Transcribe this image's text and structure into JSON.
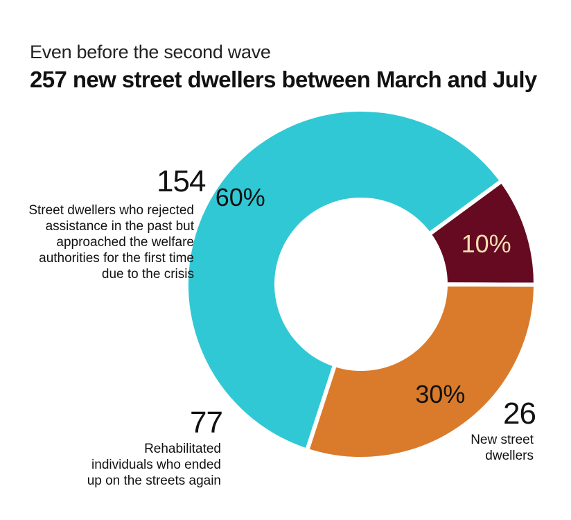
{
  "subtitle": "Even before the second wave",
  "title": "257 new street dwellers between March and July",
  "colors": {
    "cyan": "#30c8d4",
    "orange": "#da7b2b",
    "maroon": "#660a22",
    "pct_light": "#f3dfb0",
    "pct_dark": "#111111"
  },
  "chart_data": {
    "type": "pie",
    "style": "donut",
    "title": "257 new street dwellers between March and July",
    "subtitle": "Even before the second wave",
    "total": 257,
    "slices": [
      {
        "value": 154,
        "percent_label": "60%",
        "label_lines": [
          "Street dwellers who rejected",
          "assistance in the past but",
          "approached the welfare",
          "authorities for the first time",
          "due to the crisis"
        ],
        "color": "#30c8d4"
      },
      {
        "value": 26,
        "percent_label": "10%",
        "label_lines": [
          "New street",
          "dwellers"
        ],
        "color": "#660a22"
      },
      {
        "value": 77,
        "percent_label": "30%",
        "label_lines": [
          "Rehabilitated",
          "individuals who ended",
          "up on the streets again"
        ],
        "color": "#da7b2b"
      }
    ]
  }
}
